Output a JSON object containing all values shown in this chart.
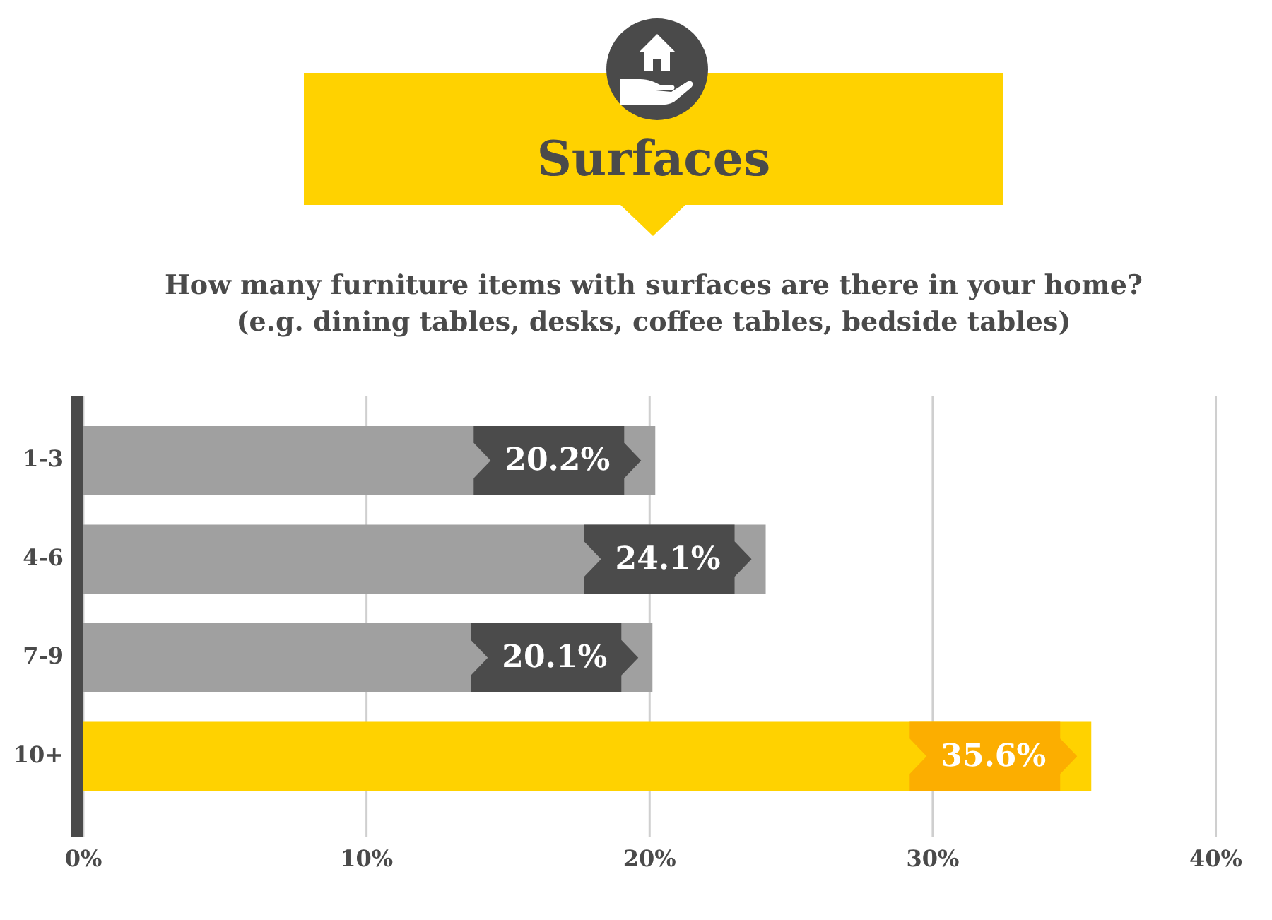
{
  "chart_data": {
    "type": "bar",
    "orientation": "horizontal",
    "title": "Surfaces",
    "subtitle": "How many furniture items with surfaces are there in your home?\n(e.g. dining tables, desks, coffee tables, bedside tables)",
    "categories": [
      "1-3",
      "4-6",
      "7-9",
      "10+"
    ],
    "values": [
      20.2,
      24.1,
      20.1,
      35.6
    ],
    "colors": [
      "#a0a0a0",
      "#a0a0a0",
      "#a0a0a0",
      "#ffd200"
    ],
    "value_labels": [
      "20.2%",
      "24.1%",
      "20.1%",
      "35.6%"
    ],
    "xlim": [
      0,
      40
    ],
    "xticks": [
      {
        "value": 0,
        "label": "0%"
      },
      {
        "value": 10,
        "label": "10%"
      },
      {
        "value": 20,
        "label": "20%"
      },
      {
        "value": 30,
        "label": "30%"
      },
      {
        "value": 40,
        "label": "40%"
      }
    ],
    "grid": "x"
  }
}
